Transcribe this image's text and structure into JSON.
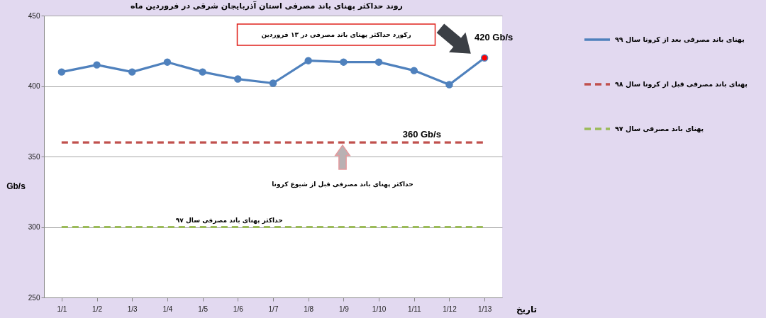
{
  "chart_data": {
    "type": "line",
    "title": "روند حداکثر پهنای باند مصرفی استان آذربایجان شرقی در فروردین ماه",
    "xlabel": "تاریخ",
    "ylabel": "Gb/s",
    "categories": [
      "1/1",
      "1/2",
      "1/3",
      "1/4",
      "1/5",
      "1/6",
      "1/7",
      "1/8",
      "1/9",
      "1/10",
      "1/11",
      "1/12",
      "1/13"
    ],
    "series": [
      {
        "name": "پهنای باند مصرفی بعد از کرونا سال ۹۹",
        "color": "#4f81bd",
        "values": [
          410,
          415,
          410,
          417,
          410,
          405,
          402,
          418,
          417,
          417,
          411,
          401,
          420
        ],
        "colors": [
          "#4f81bd",
          "#4f81bd",
          "#4f81bd",
          "#4f81bd",
          "#4f81bd",
          "#4f81bd",
          "#4f81bd",
          "#4f81bd",
          "#4f81bd",
          "#4f81bd",
          "#4f81bd",
          "#4f81bd",
          "#ff0000"
        ],
        "marker": "circle",
        "line_style": "solid"
      },
      {
        "name": "پهنای باند مصرفی  قبل از کرونا سال ۹۸",
        "color": "#c0504d",
        "values": [
          360,
          360,
          360,
          360,
          360,
          360,
          360,
          360,
          360,
          360,
          360,
          360,
          360
        ],
        "line_style": "dashed"
      },
      {
        "name": "پهنای باند مصرفی سال ۹۷",
        "color": "#9bbb59",
        "values": [
          300,
          300,
          300,
          300,
          300,
          300,
          300,
          300,
          300,
          300,
          300,
          300,
          300
        ],
        "line_style": "dashed"
      }
    ],
    "ylim": [
      250,
      450
    ],
    "yticks": [
      250,
      300,
      350,
      400,
      450
    ],
    "grid": "y",
    "legend": "top right",
    "annotations": [
      "رکورد حداکثر پهنای باند مصرفی در ۱۳ فروردین",
      {
        "text": "420 Gb/s",
        "x": "1/13",
        "y": 420
      },
      {
        "text": "360 Gb/s",
        "x": "1/11",
        "y": 360
      },
      "حداکثر پهنای باند مصرفی قبل از شیوع کرونا",
      {
        "text": "حداکثر پهنای باند مصرفی سال ۹۷",
        "x": "1/6",
        "y": 300
      }
    ]
  }
}
